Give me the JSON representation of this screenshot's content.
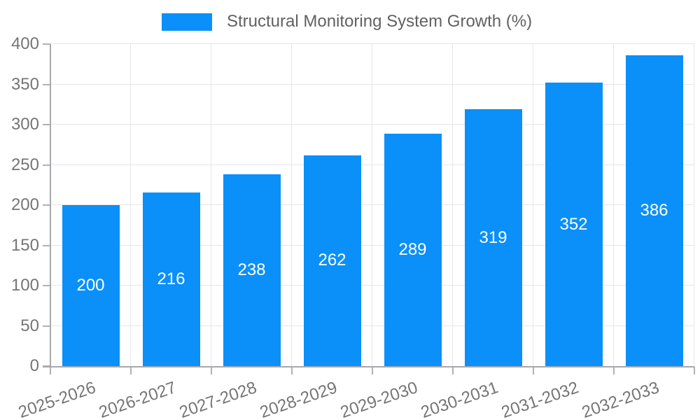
{
  "legend": {
    "series_label": "Structural Monitoring System Growth (%)"
  },
  "chart_data": {
    "type": "bar",
    "title": "Structural Monitoring System Growth (%)",
    "series": [
      {
        "name": "Structural Monitoring System Growth (%)",
        "values": [
          200,
          216,
          238,
          262,
          289,
          319,
          352,
          386
        ]
      }
    ],
    "categories": [
      "2025-2026",
      "2026-2027",
      "2027-2028",
      "2028-2029",
      "2029-2030",
      "2030-2031",
      "2031-2032",
      "2032-2033"
    ],
    "values": [
      200,
      216,
      238,
      262,
      289,
      319,
      352,
      386
    ],
    "value_labels_shown": true,
    "xlabel": "",
    "ylabel": "",
    "ylim": [
      0,
      400
    ],
    "ytick_step": 50,
    "grid": true,
    "legend_position": "top",
    "x_label_rotation_deg": -19
  },
  "colors": {
    "bar": "#0a90f8",
    "axis": "#a8a8ac",
    "tick": "#b2b2b6",
    "grid": "#e6e6ea",
    "tick_text": "#757575",
    "legend_text": "#616161",
    "value_label": "#ffffff",
    "background": "#ffffff"
  }
}
